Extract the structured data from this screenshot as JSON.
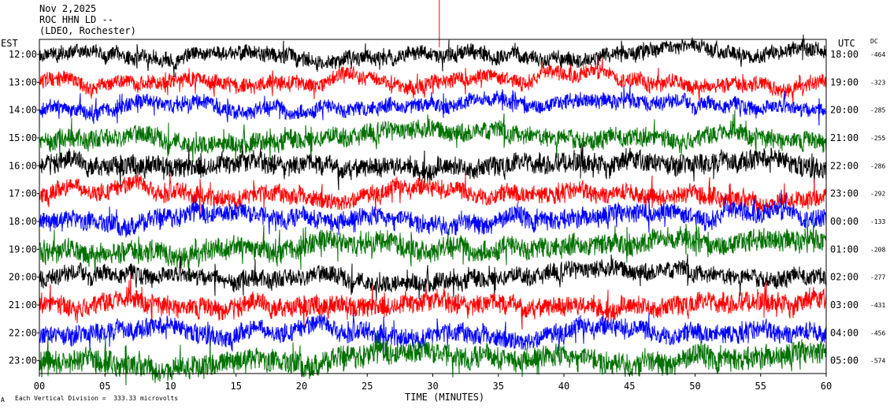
{
  "header": {
    "date": "Nov 2,2025",
    "station": "ROC HHN LD --",
    "network": "(LDEO, Rochester)"
  },
  "left_axis_label": "EST",
  "right_axis_label": "UTC",
  "dc_label": "DC",
  "footer": {
    "xlabel": "TIME (MINUTES)",
    "scale_note": "Each Vertical Division =  333.33 microvolts",
    "corner_mark": "A"
  },
  "colors": {
    "background": "#ffffff",
    "frame": "#000000",
    "trace_cycle": [
      "#000000",
      "#ff0000",
      "#0000ff",
      "#007000"
    ],
    "event_marker": "#ff0000"
  },
  "chart_data": {
    "type": "line",
    "subtype": "helicorder",
    "xlabel": "TIME (MINUTES)",
    "xlim": [
      0,
      60
    ],
    "x_ticks": [
      "00",
      "05",
      "10",
      "15",
      "20",
      "25",
      "30",
      "35",
      "40",
      "45",
      "50",
      "55",
      "60"
    ],
    "event_marker_minute": 30.5,
    "rows": [
      {
        "est": "12:00",
        "utc": "18:00",
        "dc": "-464",
        "color": "#000000",
        "amplitude": 0.55
      },
      {
        "est": "13:00",
        "utc": "19:00",
        "dc": "-323",
        "color": "#ff0000",
        "amplitude": 0.55
      },
      {
        "est": "14:00",
        "utc": "20:00",
        "dc": "-285",
        "color": "#0000ff",
        "amplitude": 0.55
      },
      {
        "est": "15:00",
        "utc": "21:00",
        "dc": "-255",
        "color": "#007000",
        "amplitude": 0.7
      },
      {
        "est": "16:00",
        "utc": "22:00",
        "dc": "-286",
        "color": "#000000",
        "amplitude": 0.75
      },
      {
        "est": "17:00",
        "utc": "23:00",
        "dc": "-292",
        "color": "#ff0000",
        "amplitude": 0.65
      },
      {
        "est": "18:00",
        "utc": "00:00",
        "dc": "-133",
        "color": "#0000ff",
        "amplitude": 0.7
      },
      {
        "est": "19:00",
        "utc": "01:00",
        "dc": "-208",
        "color": "#007000",
        "amplitude": 0.8
      },
      {
        "est": "20:00",
        "utc": "02:00",
        "dc": "-277",
        "color": "#000000",
        "amplitude": 0.65
      },
      {
        "est": "21:00",
        "utc": "03:00",
        "dc": "-431",
        "color": "#ff0000",
        "amplitude": 0.75
      },
      {
        "est": "22:00",
        "utc": "04:00",
        "dc": "-456",
        "color": "#0000ff",
        "amplitude": 0.7
      },
      {
        "est": "23:00",
        "utc": "05:00",
        "dc": "-574",
        "color": "#007000",
        "amplitude": 0.85
      }
    ]
  }
}
